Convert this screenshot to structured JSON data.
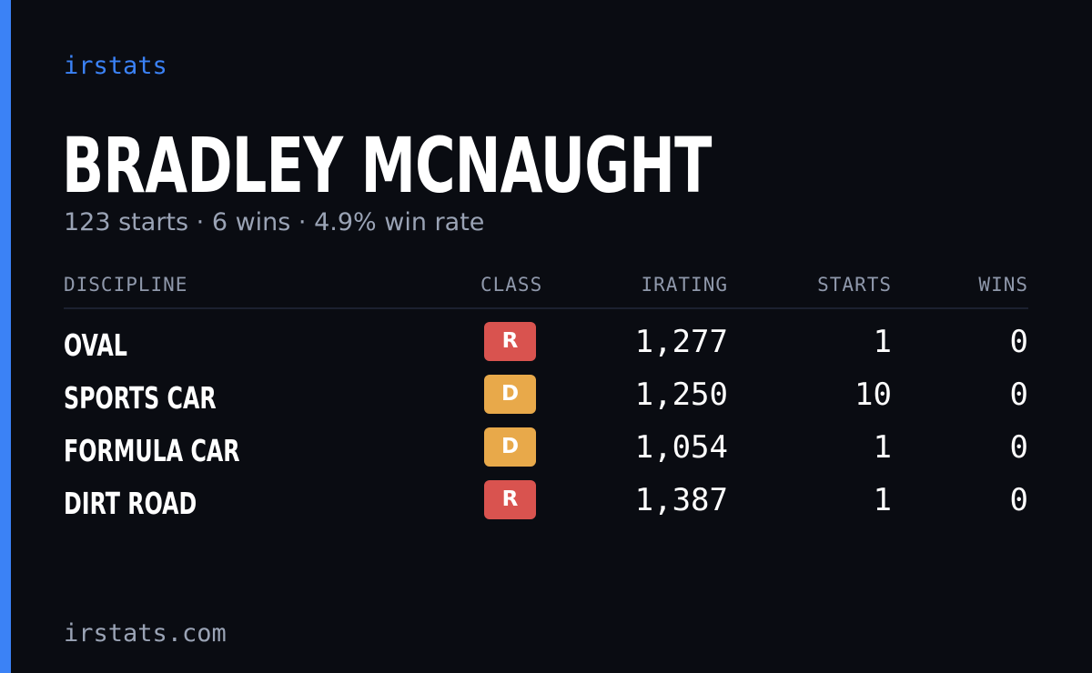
{
  "brand": "irstats",
  "player": {
    "name": "BRADLEY MCNAUGHT",
    "summary": "123 starts · 6 wins · 4.9% win rate"
  },
  "table": {
    "headers": {
      "discipline": "DISCIPLINE",
      "class": "CLASS",
      "irating": "IRATING",
      "starts": "STARTS",
      "wins": "WINS"
    },
    "rows": [
      {
        "discipline": "OVAL",
        "class": "R",
        "class_color": "#d9534f",
        "irating": "1,277",
        "starts": "1",
        "wins": "0"
      },
      {
        "discipline": "SPORTS CAR",
        "class": "D",
        "class_color": "#e8a94a",
        "irating": "1,250",
        "starts": "10",
        "wins": "0"
      },
      {
        "discipline": "FORMULA CAR",
        "class": "D",
        "class_color": "#e8a94a",
        "irating": "1,054",
        "starts": "1",
        "wins": "0"
      },
      {
        "discipline": "DIRT ROAD",
        "class": "R",
        "class_color": "#d9534f",
        "irating": "1,387",
        "starts": "1",
        "wins": "0"
      }
    ]
  },
  "footer": {
    "url": "irstats.com"
  },
  "colors": {
    "accent": "#3b82f6",
    "background": "#0a0c12",
    "muted_text": "#9aa3b5"
  }
}
